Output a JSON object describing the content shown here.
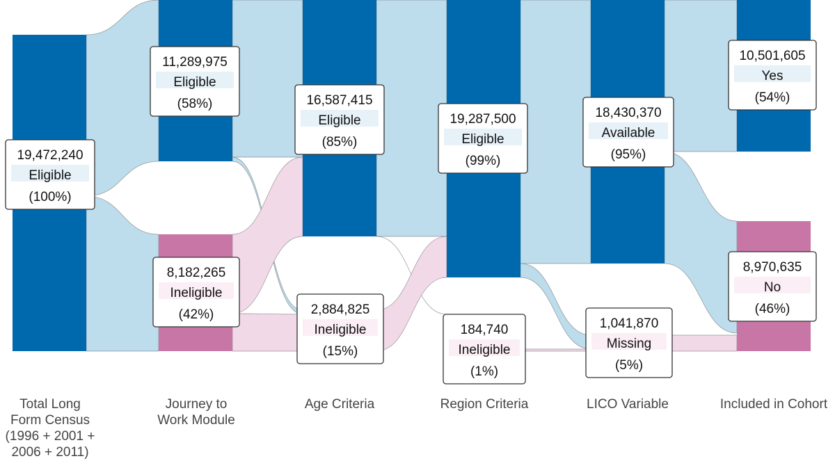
{
  "colors": {
    "node_blue": "#0068AC",
    "node_pink": "#C776A6",
    "flow_blue": "#BDDCEC",
    "flow_pink": "#F2D9E8",
    "label_blue_tint": "#E6F1F8",
    "label_pink_tint": "#FBEEF5"
  },
  "columns": [
    {
      "id": "total",
      "lines": [
        "Total Long",
        "Form Census",
        "(1996 + 2001 +",
        "2006 + 2011)"
      ]
    },
    {
      "id": "journey",
      "lines": [
        "Journey to",
        "Work Module"
      ]
    },
    {
      "id": "age",
      "lines": [
        "Age Criteria"
      ]
    },
    {
      "id": "region",
      "lines": [
        "Region Criteria"
      ]
    },
    {
      "id": "lico",
      "lines": [
        "LICO Variable"
      ]
    },
    {
      "id": "cohort",
      "lines": [
        "Included in Cohort"
      ]
    }
  ],
  "nodes": {
    "total_eligible": {
      "value": "19,472,240",
      "label": "Eligible",
      "percent": "(100%)"
    },
    "journey_eligible": {
      "value": "11,289,975",
      "label": "Eligible",
      "percent": "(58%)"
    },
    "journey_ineligible": {
      "value": "8,182,265",
      "label": "Ineligible",
      "percent": "(42%)"
    },
    "age_eligible": {
      "value": "16,587,415",
      "label": "Eligible",
      "percent": "(85%)"
    },
    "age_ineligible": {
      "value": "2,884,825",
      "label": "Ineligible",
      "percent": "(15%)"
    },
    "region_eligible": {
      "value": "19,287,500",
      "label": "Eligible",
      "percent": "(99%)"
    },
    "region_ineligible": {
      "value": "184,740",
      "label": "Ineligible",
      "percent": "(1%)"
    },
    "lico_available": {
      "value": "18,430,370",
      "label": "Available",
      "percent": "(95%)"
    },
    "lico_missing": {
      "value": "1,041,870",
      "label": "Missing",
      "percent": "(5%)"
    },
    "cohort_yes": {
      "value": "10,501,605",
      "label": "Yes",
      "percent": "(54%)"
    },
    "cohort_no": {
      "value": "8,970,635",
      "label": "No",
      "percent": "(46%)"
    }
  }
}
